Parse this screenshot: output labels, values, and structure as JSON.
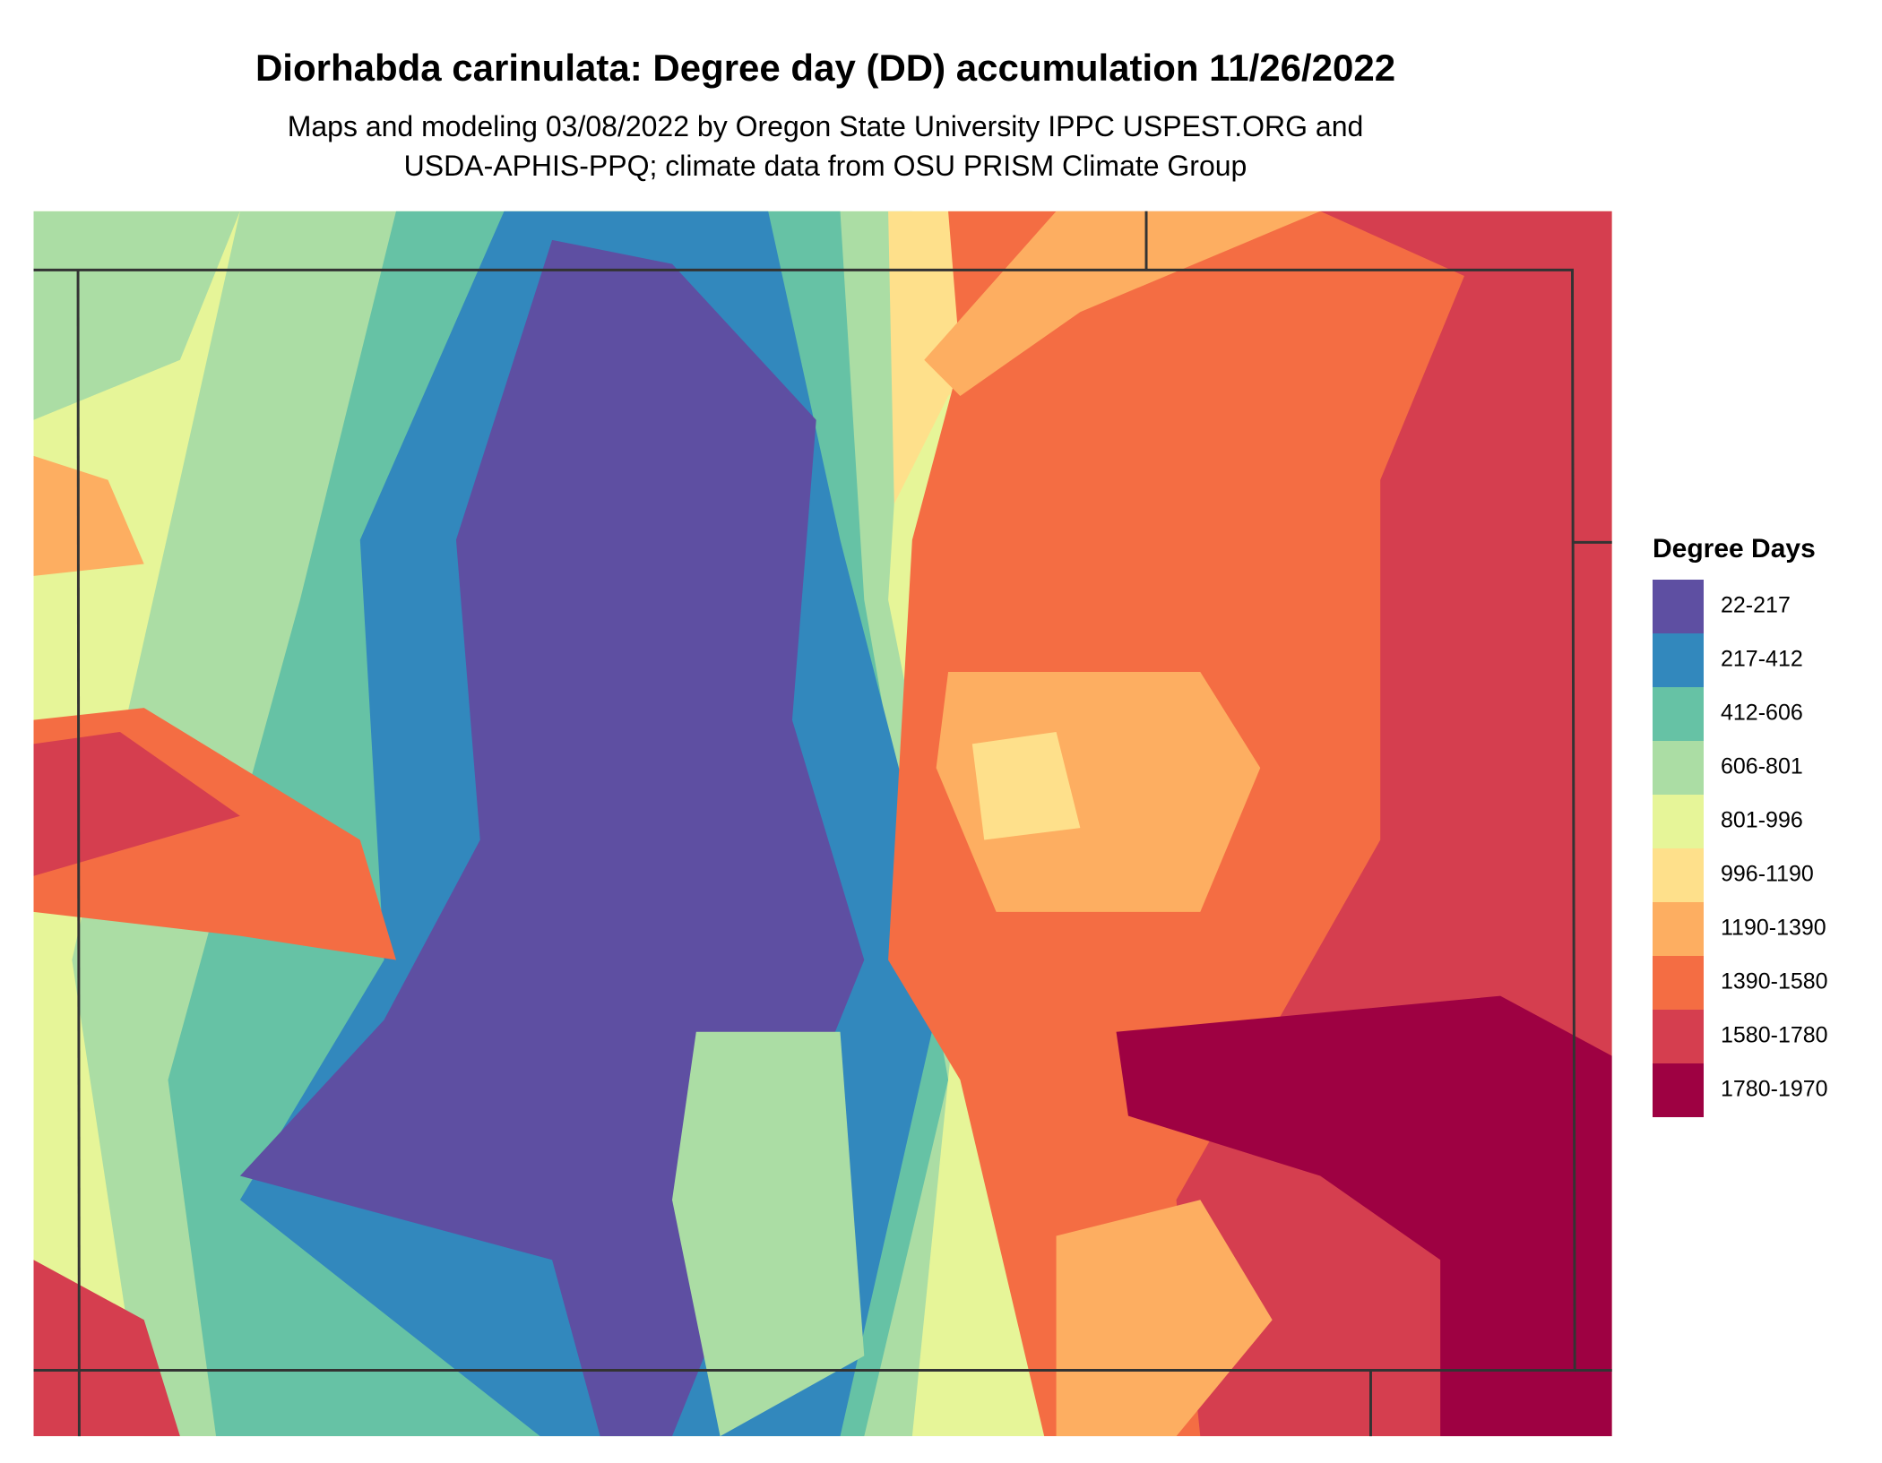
{
  "header": {
    "title": "Diorhabda carinulata: Degree day (DD) accumulation 11/26/2022",
    "subtitle_lines": [
      "Maps and modeling 03/08/2022 by Oregon State University IPPC USPEST.ORG and",
      "USDA-APHIS-PPQ; climate data from OSU PRISM Climate Group"
    ]
  },
  "legend": {
    "title": "Degree Days",
    "items": [
      {
        "label": "22-217",
        "color": "#5e4fa2"
      },
      {
        "label": "217-412",
        "color": "#3288bd"
      },
      {
        "label": "412-606",
        "color": "#66c2a5"
      },
      {
        "label": "606-801",
        "color": "#abdda4"
      },
      {
        "label": "801-996",
        "color": "#e6f598"
      },
      {
        "label": "996-1190",
        "color": "#fee08b"
      },
      {
        "label": "1190-1390",
        "color": "#fdae61"
      },
      {
        "label": "1390-1580",
        "color": "#f46d43"
      },
      {
        "label": "1580-1780",
        "color": "#d53e4f"
      },
      {
        "label": "1780-1970",
        "color": "#9e0142"
      }
    ]
  }
}
